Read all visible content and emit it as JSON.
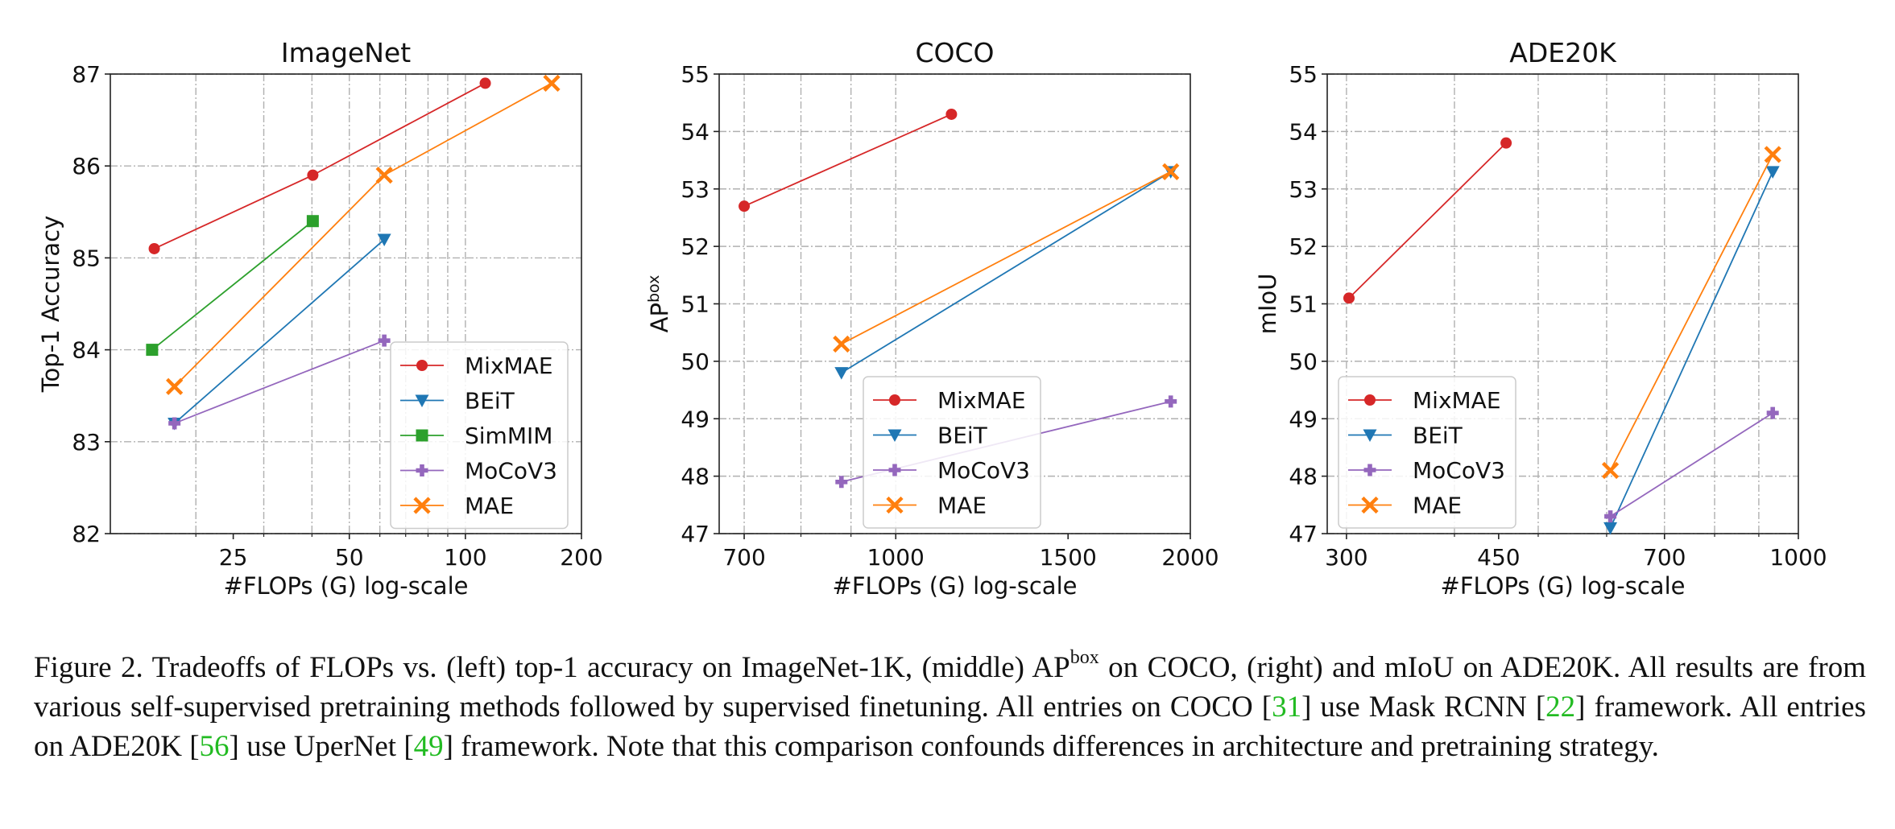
{
  "colors": {
    "MixMAE": "#d62728",
    "BEiT": "#1f77b4",
    "SimMIM": "#2ca02c",
    "MoCoV3": "#9467bd",
    "MAE": "#ff7f0e",
    "grid": "#b0b0b0",
    "reference_link": "#22bb22"
  },
  "chart_data": [
    {
      "type": "line",
      "title": "ImageNet",
      "xlabel": "#FLOPs (G) log-scale",
      "ylabel": "Top-1 Accuracy",
      "xscale": "log",
      "xlim": [
        12,
        200
      ],
      "ylim": [
        82,
        87
      ],
      "xticks": [
        25,
        50,
        100,
        200
      ],
      "yticks": [
        82,
        83,
        84,
        85,
        86,
        87
      ],
      "grid": true,
      "legend": "bottom-right",
      "series": [
        {
          "name": "MixMAE",
          "marker": "circle",
          "x": [
            15.6,
            40.2,
            112.6
          ],
          "y": [
            85.1,
            85.9,
            86.9
          ]
        },
        {
          "name": "BEiT",
          "marker": "triangle-down",
          "x": [
            17.6,
            61.6
          ],
          "y": [
            83.2,
            85.2
          ]
        },
        {
          "name": "SimMIM",
          "marker": "square",
          "x": [
            15.4,
            40.2
          ],
          "y": [
            84.0,
            85.4
          ]
        },
        {
          "name": "MoCoV3",
          "marker": "plus",
          "x": [
            17.6,
            61.6
          ],
          "y": [
            83.2,
            84.1
          ]
        },
        {
          "name": "MAE",
          "marker": "x",
          "x": [
            17.6,
            61.6,
            167.4
          ],
          "y": [
            83.6,
            85.9,
            86.9
          ]
        }
      ]
    },
    {
      "type": "line",
      "title": "COCO",
      "xlabel": "#FLOPs (G) log-scale",
      "ylabel": "AP",
      "ylabel_sup": "box",
      "xscale": "log",
      "xlim": [
        660,
        2000
      ],
      "ylim": [
        47,
        55
      ],
      "xticks": [
        700,
        1000,
        1500,
        2000
      ],
      "yticks": [
        47,
        48,
        49,
        50,
        51,
        52,
        53,
        54,
        55
      ],
      "grid": true,
      "legend": "lower-center",
      "series": [
        {
          "name": "MixMAE",
          "marker": "circle",
          "x": [
            700,
            1140
          ],
          "y": [
            52.7,
            54.3
          ]
        },
        {
          "name": "BEiT",
          "marker": "triangle-down",
          "x": [
            880,
            1910
          ],
          "y": [
            49.8,
            53.3
          ]
        },
        {
          "name": "MoCoV3",
          "marker": "plus",
          "x": [
            880,
            1910
          ],
          "y": [
            47.9,
            49.3
          ]
        },
        {
          "name": "MAE",
          "marker": "x",
          "x": [
            880,
            1910
          ],
          "y": [
            50.3,
            53.3
          ]
        }
      ]
    },
    {
      "type": "line",
      "title": "ADE20K",
      "xlabel": "#FLOPs (G) log-scale",
      "ylabel": "mIoU",
      "xscale": "log",
      "xlim": [
        285,
        1000
      ],
      "ylim": [
        47,
        55
      ],
      "xticks": [
        300,
        450,
        700,
        1000
      ],
      "yticks": [
        47,
        48,
        49,
        50,
        51,
        52,
        53,
        54,
        55
      ],
      "grid": true,
      "legend": "bottom-left",
      "series": [
        {
          "name": "MixMAE",
          "marker": "circle",
          "x": [
            302,
            459
          ],
          "y": [
            51.1,
            53.8
          ]
        },
        {
          "name": "BEiT",
          "marker": "triangle-down",
          "x": [
            606,
            934
          ],
          "y": [
            47.1,
            53.3
          ]
        },
        {
          "name": "MoCoV3",
          "marker": "plus",
          "x": [
            606,
            934
          ],
          "y": [
            47.3,
            49.1
          ]
        },
        {
          "name": "MAE",
          "marker": "x",
          "x": [
            606,
            934
          ],
          "y": [
            48.1,
            53.6
          ]
        }
      ]
    }
  ],
  "caption": {
    "p1": "Figure 2. Tradeoffs of FLOPs vs. (left) top-1 accuracy on ImageNet-1K, (middle) AP",
    "p1_sup": "box",
    "p2": " on COCO, (right) and mIoU on ADE20K. All results are from various self-supervised pretraining methods followed by supervised finetuning.  All entries on COCO [",
    "ref1": "31",
    "p3": "] use Mask RCNN [",
    "ref2": "22",
    "p4": "] framework. All entries on ADE20K [",
    "ref3": "56",
    "p5": "] use UperNet [",
    "ref4": "49",
    "p6": "] framework. Note that this comparison confounds differences in architecture and pretraining strategy."
  }
}
